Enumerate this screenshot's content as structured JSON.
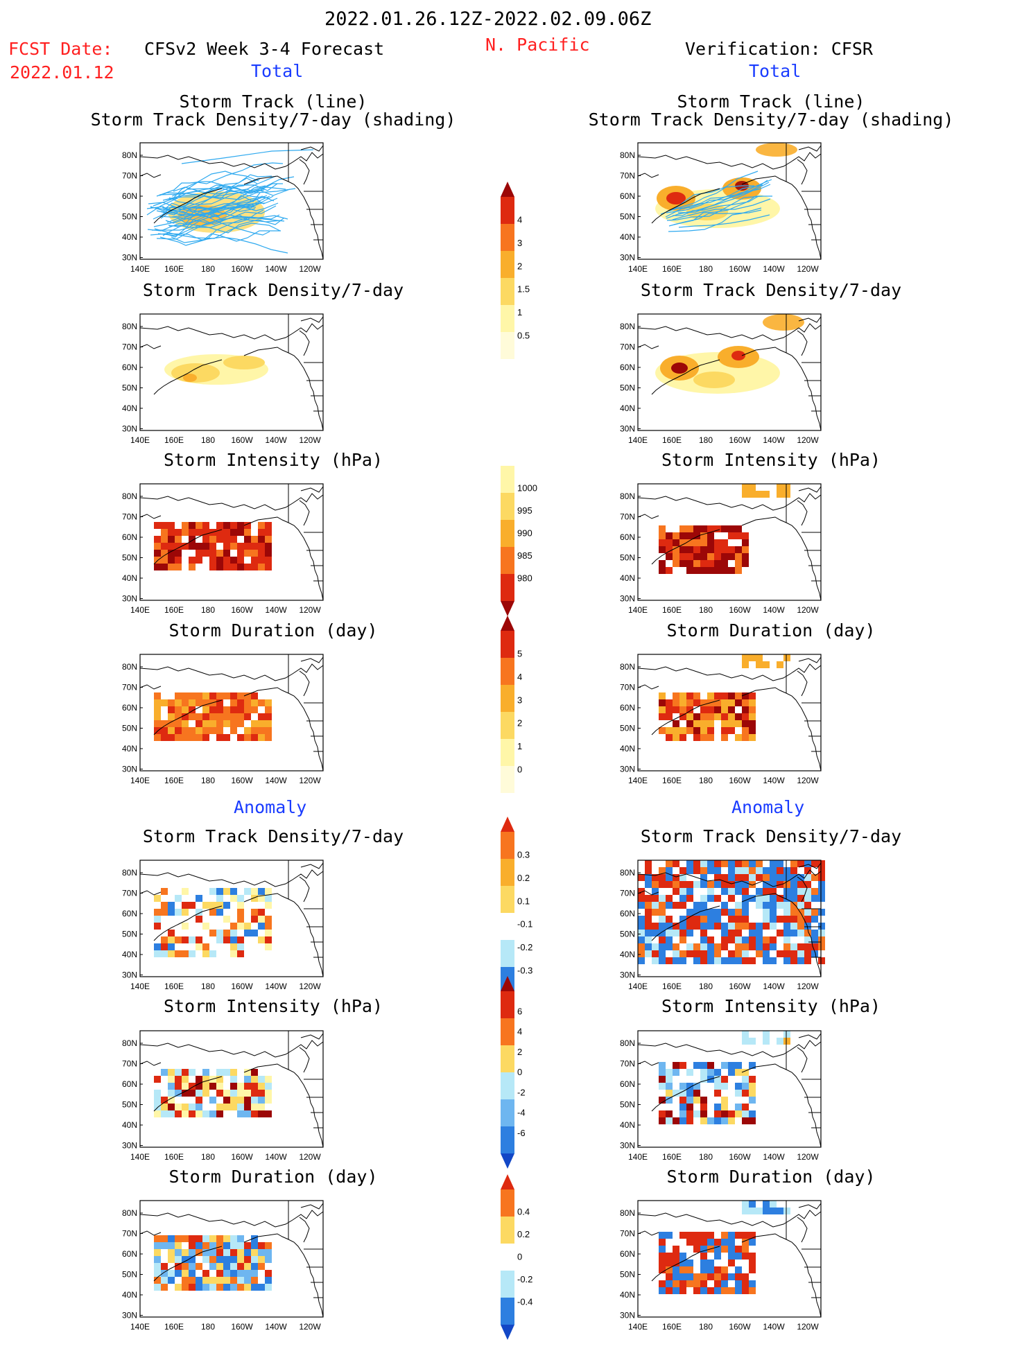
{
  "header": {
    "period": "2022.01.26.12Z-2022.02.09.06Z",
    "fcst_label": "FCST Date:",
    "fcst_date": "2022.01.12",
    "model": "CFSv2 Week 3-4 Forecast",
    "region": "N. Pacific",
    "verification": "Verification: CFSR",
    "total_left": "Total",
    "total_right": "Total",
    "anomaly_left": "Anomaly",
    "anomaly_right": "Anomaly"
  },
  "titles": {
    "track_line": "Storm Track (line)",
    "track_density_shading": "Storm Track Density/7-day (shading)",
    "track_density": "Storm Track Density/7-day",
    "intensity": "Storm Intensity (hPa)",
    "duration": "Storm Duration (day)"
  },
  "axes": {
    "lat_labels": [
      "80N",
      "70N",
      "60N",
      "50N",
      "40N",
      "30N"
    ],
    "lon_labels": [
      "140E",
      "160E",
      "180",
      "160W",
      "140W",
      "120W"
    ]
  },
  "colors": {
    "yellow_light": "#fff6a8",
    "yellow": "#fcd962",
    "orange_light": "#f9ae2c",
    "orange": "#f7751f",
    "red": "#de2a10",
    "darkred": "#9c0707",
    "blue_light": "#b6e8f7",
    "blue": "#6eb6f0",
    "blue_mid": "#2d7fe0",
    "blue_dark": "#1247c6",
    "track_line": "#2ea9ef"
  },
  "colorbars": {
    "density_total": [
      "0.5",
      "1",
      "1.5",
      "2",
      "3",
      "4"
    ],
    "intensity_total": [
      "1000",
      "995",
      "990",
      "985",
      "980"
    ],
    "duration_total": [
      "0",
      "1",
      "2",
      "3",
      "4",
      "5"
    ],
    "density_anom": [
      "0.3",
      "0.2",
      "0.1",
      "-0.1",
      "-0.2",
      "-0.3"
    ],
    "intensity_anom": [
      "6",
      "4",
      "2",
      "0",
      "-2",
      "-4",
      "-6"
    ],
    "duration_anom": [
      "0.4",
      "0.2",
      "0",
      "-0.2",
      "-0.4"
    ]
  }
}
